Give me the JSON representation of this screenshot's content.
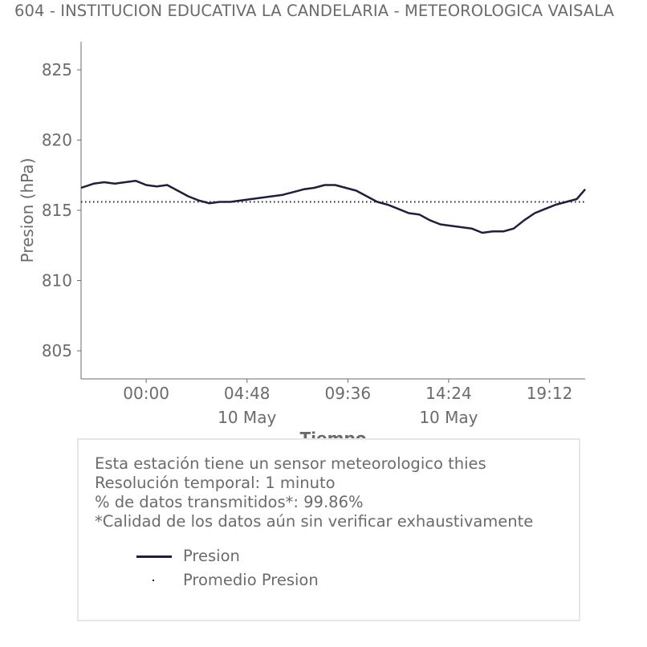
{
  "title": "604 - INSTITUCION EDUCATIVA LA CANDELARIA - METEOROLOGICA VAISALA",
  "chart_data": {
    "type": "line",
    "title": "604 - INSTITUCION EDUCATIVA LA CANDELARIA - METEOROLOGICA VAISALA",
    "xlabel": "Tiempo",
    "ylabel": "Presion (hPa)",
    "ylim": [
      803,
      827
    ],
    "y_ticks": [
      805,
      810,
      815,
      820,
      825
    ],
    "xlim_hours": [
      -3.1,
      20.9
    ],
    "x_ticks": [
      {
        "hour": 0.0,
        "label": "00:00",
        "sublabel": ""
      },
      {
        "hour": 4.8,
        "label": "04:48",
        "sublabel": "10 May"
      },
      {
        "hour": 9.6,
        "label": "09:36",
        "sublabel": ""
      },
      {
        "hour": 14.4,
        "label": "14:24",
        "sublabel": "10 May"
      },
      {
        "hour": 19.2,
        "label": "19:12",
        "sublabel": ""
      }
    ],
    "series": [
      {
        "name": "Presion",
        "color": "#1f1f3d",
        "style": "solid",
        "x": [
          -3.1,
          -2.5,
          -2.0,
          -1.5,
          -1.0,
          -0.5,
          0.0,
          0.5,
          1.0,
          1.5,
          2.0,
          2.5,
          3.0,
          3.5,
          4.0,
          4.5,
          5.0,
          5.5,
          6.0,
          6.5,
          7.0,
          7.5,
          8.0,
          8.5,
          9.0,
          9.5,
          10.0,
          10.5,
          11.0,
          11.5,
          12.0,
          12.5,
          13.0,
          13.5,
          14.0,
          14.5,
          15.0,
          15.5,
          16.0,
          16.5,
          17.0,
          17.5,
          18.0,
          18.5,
          19.0,
          19.5,
          20.0,
          20.5,
          20.9
        ],
        "y": [
          816.6,
          816.9,
          817.0,
          816.9,
          817.0,
          817.1,
          816.8,
          816.7,
          816.8,
          816.4,
          816.0,
          815.7,
          815.5,
          815.6,
          815.6,
          815.7,
          815.8,
          815.9,
          816.0,
          816.1,
          816.3,
          816.5,
          816.6,
          816.8,
          816.8,
          816.6,
          816.4,
          816.0,
          815.6,
          815.4,
          815.1,
          814.8,
          814.7,
          814.3,
          814.0,
          813.9,
          813.8,
          813.7,
          813.4,
          813.5,
          813.5,
          813.7,
          814.3,
          814.8,
          815.1,
          815.4,
          815.6,
          815.8,
          816.5
        ]
      },
      {
        "name": "Promedio Presion",
        "color": "#1f1f3d",
        "style": "dotted",
        "x": [
          -3.1,
          20.9
        ],
        "y": [
          815.6,
          815.6
        ]
      }
    ]
  },
  "info": {
    "line1": "Esta estación tiene un sensor meteorologico thies",
    "line2": "Resolución temporal: 1 minuto",
    "line3": "% de datos transmitidos*: 99.86%",
    "line4": "*Calidad de los datos aún sin verificar exhaustivamente"
  },
  "legend": {
    "series1": "Presion",
    "series2": "Promedio Presion"
  }
}
